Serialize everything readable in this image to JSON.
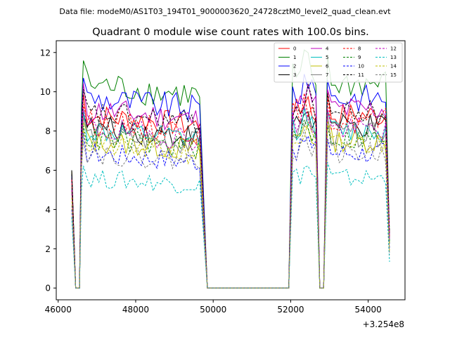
{
  "chart_data": {
    "type": "line",
    "suptitle": "Data file: modeM0/AS1T03_194T01_9000003620_24728cztM0_level2_quad_clean.evt",
    "title": "Quadrant 0 module wise count rates with 100.0s bins.",
    "xlabel": "",
    "ylabel": "",
    "x_offset_label": "+3.254e8",
    "xlim": [
      45950,
      54950
    ],
    "ylim": [
      -0.6,
      12.6
    ],
    "xticks": [
      46000,
      48000,
      50000,
      52000,
      54000
    ],
    "xtick_labels": [
      "46000",
      "48000",
      "50000",
      "52000",
      "54000"
    ],
    "yticks": [
      0,
      2,
      4,
      6,
      8,
      10,
      12
    ],
    "ytick_labels": [
      "0",
      "2",
      "4",
      "6",
      "8",
      "10",
      "12"
    ],
    "legend_position": "top-right",
    "legend_columns": 4,
    "segments": [
      {
        "name": "seg-a",
        "start": 46350,
        "rise": 6.0,
        "gap_start": 46450,
        "gap_end": 46550,
        "plateau_start": 46650,
        "plateau_end": 49650,
        "drop_end": 49850
      },
      {
        "name": "seg-b",
        "start": 51950,
        "plateau_end": 52650,
        "gap_start": 52750,
        "gap_end": 52850,
        "plateau2_start": 52950,
        "plateau2_end": 54450,
        "drop_end": 54550
      }
    ],
    "series": [
      {
        "name": "0",
        "color": "#ff0000",
        "dashed": false,
        "level": 8.8,
        "first": 6.0
      },
      {
        "name": "1",
        "color": "#008000",
        "dashed": false,
        "level": 10.4,
        "first": 6.0
      },
      {
        "name": "2",
        "color": "#0000ff",
        "dashed": false,
        "level": 9.7,
        "first": 5.8
      },
      {
        "name": "3",
        "color": "#000000",
        "dashed": false,
        "level": 8.2,
        "first": 6.0
      },
      {
        "name": "4",
        "color": "#bf00bf",
        "dashed": false,
        "level": 9.1,
        "first": 5.6
      },
      {
        "name": "5",
        "color": "#00bfbf",
        "dashed": false,
        "level": 8.0,
        "first": 5.2
      },
      {
        "name": "6",
        "color": "#bfbf00",
        "dashed": false,
        "level": 7.5,
        "first": 5.0
      },
      {
        "name": "7",
        "color": "#808080",
        "dashed": false,
        "level": 7.8,
        "first": 5.2
      },
      {
        "name": "8",
        "color": "#ff0000",
        "dashed": true,
        "level": 8.5,
        "first": 5.5
      },
      {
        "name": "9",
        "color": "#008000",
        "dashed": true,
        "level": 7.6,
        "first": 5.0
      },
      {
        "name": "10",
        "color": "#0000ff",
        "dashed": true,
        "level": 6.9,
        "first": 4.0
      },
      {
        "name": "11",
        "color": "#000000",
        "dashed": true,
        "level": 8.9,
        "first": 5.8
      },
      {
        "name": "12",
        "color": "#bf00bf",
        "dashed": true,
        "level": 8.1,
        "first": 5.0
      },
      {
        "name": "13",
        "color": "#00bfbf",
        "dashed": true,
        "level": 5.6,
        "first": 3.6
      },
      {
        "name": "14",
        "color": "#bfbf00",
        "dashed": true,
        "level": 7.3,
        "first": 4.6
      },
      {
        "name": "15",
        "color": "#808080",
        "dashed": true,
        "level": 6.9,
        "first": 4.2
      }
    ]
  }
}
